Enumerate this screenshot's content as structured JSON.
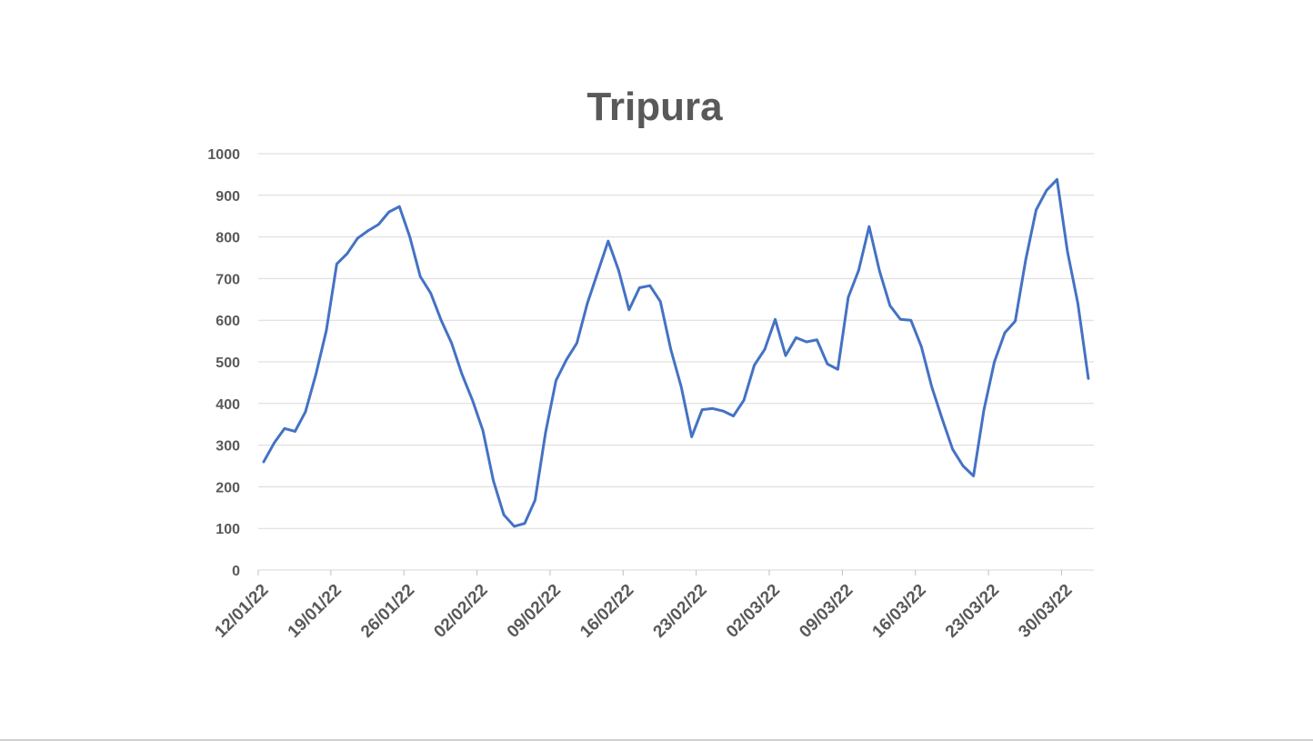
{
  "chart_data": {
    "type": "line",
    "title": "Tripura",
    "xlabel": "",
    "ylabel": "",
    "ylim": [
      0,
      1000
    ],
    "yticks": [
      0,
      100,
      200,
      300,
      400,
      500,
      600,
      700,
      800,
      900,
      1000
    ],
    "grid": true,
    "legend": "none",
    "x_start": "12/01/22",
    "x_step_days": 1,
    "xtick_labels": [
      "12/01/22",
      "19/01/22",
      "26/01/22",
      "02/02/22",
      "09/02/22",
      "16/02/22",
      "23/02/22",
      "02/03/22",
      "09/03/22",
      "16/03/22",
      "23/03/22",
      "30/03/22"
    ],
    "colors": {
      "series": "#4472c4",
      "text": "#595959",
      "grid": "#d9d9d9"
    },
    "series": [
      {
        "values": [
          260,
          305,
          340,
          333,
          380,
          470,
          575,
          735,
          760,
          797,
          815,
          830,
          860,
          873,
          800,
          705,
          665,
          600,
          545,
          470,
          408,
          335,
          215,
          133,
          105,
          112,
          168,
          330,
          455,
          505,
          545,
          640,
          715,
          790,
          720,
          625,
          678,
          683,
          645,
          530,
          440,
          320,
          385,
          388,
          382,
          370,
          408,
          492,
          530,
          602,
          515,
          558,
          548,
          553,
          495,
          482,
          655,
          720,
          825,
          718,
          635,
          602,
          600,
          537,
          440,
          363,
          290,
          250,
          226,
          385,
          500,
          570,
          598,
          745,
          865,
          912,
          938,
          765,
          640,
          460
        ]
      }
    ]
  }
}
